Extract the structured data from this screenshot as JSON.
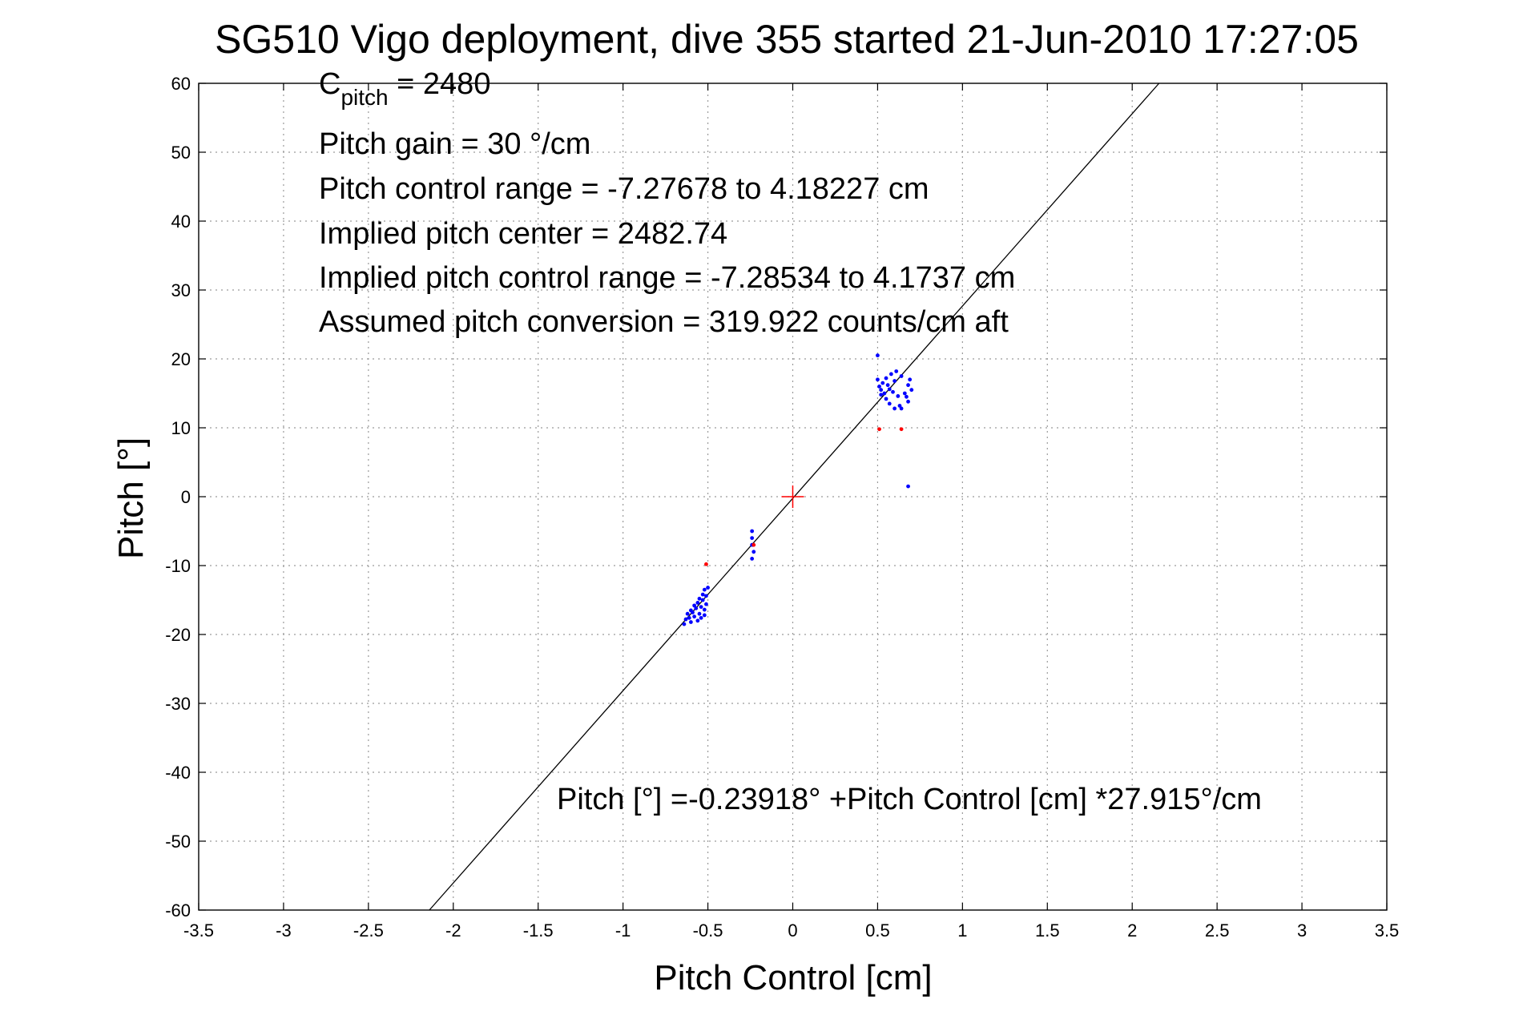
{
  "chart_data": {
    "type": "scatter",
    "title": "SG510 Vigo deployment, dive 355 started 21-Jun-2010 17:27:05",
    "xlabel": "Pitch Control [cm]",
    "ylabel": "Pitch [°]",
    "xlim": [
      -3.5,
      3.5
    ],
    "ylim": [
      -60,
      60
    ],
    "xticks": [
      -3.5,
      -3,
      -2.5,
      -2,
      -1.5,
      -1,
      -0.5,
      0,
      0.5,
      1,
      1.5,
      2,
      2.5,
      3,
      3.5
    ],
    "yticks": [
      -60,
      -50,
      -40,
      -30,
      -20,
      -10,
      0,
      10,
      20,
      30,
      40,
      50,
      60
    ],
    "grid": true,
    "annotations": {
      "c_pitch_main": "C",
      "c_pitch_sub": "pitch",
      "c_pitch_value": " = 2480",
      "line2": "Pitch gain = 30 °/cm",
      "line3": "Pitch control range = -7.27678 to 4.18227 cm",
      "line4": "Implied pitch center = 2482.74",
      "line5": "Implied pitch control range = -7.28534 to 4.1737 cm",
      "line6": "Assumed pitch conversion = 319.922 counts/cm aft",
      "fit_equation": "Pitch [°] =-0.23918° +Pitch Control [cm] *27.915°/cm"
    },
    "fit_line": {
      "intercept": -0.23918,
      "slope": 27.915,
      "color": "#000000"
    },
    "center_marker": {
      "x": 0,
      "y": 0,
      "color": "#ff0000"
    },
    "series": [
      {
        "color": "#0000ff",
        "points": [
          [
            0.5,
            20.5
          ],
          [
            0.5,
            17
          ],
          [
            0.51,
            16
          ],
          [
            0.52,
            15.5
          ],
          [
            0.52,
            14.8
          ],
          [
            0.53,
            16.5
          ],
          [
            0.54,
            15
          ],
          [
            0.55,
            17.2
          ],
          [
            0.55,
            14.2
          ],
          [
            0.56,
            16.2
          ],
          [
            0.57,
            15.6
          ],
          [
            0.57,
            13.5
          ],
          [
            0.58,
            17.8
          ],
          [
            0.59,
            15.2
          ],
          [
            0.6,
            12.8
          ],
          [
            0.6,
            16.8
          ],
          [
            0.61,
            18.2
          ],
          [
            0.62,
            14.6
          ],
          [
            0.63,
            13.2
          ],
          [
            0.64,
            17.5
          ],
          [
            0.64,
            12.8
          ],
          [
            0.66,
            15
          ],
          [
            0.67,
            14.5
          ],
          [
            0.68,
            16.2
          ],
          [
            0.68,
            13.8
          ],
          [
            0.69,
            17
          ],
          [
            0.7,
            15.5
          ],
          [
            0.68,
            1.5
          ],
          [
            -0.24,
            -5
          ],
          [
            -0.24,
            -6
          ],
          [
            -0.24,
            -7
          ],
          [
            -0.23,
            -8
          ],
          [
            -0.24,
            -9
          ],
          [
            -0.64,
            -18.5
          ],
          [
            -0.63,
            -17.8
          ],
          [
            -0.62,
            -17
          ],
          [
            -0.61,
            -17.6
          ],
          [
            -0.6,
            -16.5
          ],
          [
            -0.59,
            -16.8
          ],
          [
            -0.58,
            -17.4
          ],
          [
            -0.58,
            -15.8
          ],
          [
            -0.57,
            -16.2
          ],
          [
            -0.56,
            -18
          ],
          [
            -0.56,
            -15.4
          ],
          [
            -0.55,
            -17
          ],
          [
            -0.55,
            -14.8
          ],
          [
            -0.54,
            -16
          ],
          [
            -0.54,
            -17.6
          ],
          [
            -0.53,
            -15
          ],
          [
            -0.53,
            -14.2
          ],
          [
            -0.52,
            -16.4
          ],
          [
            -0.52,
            -13.5
          ],
          [
            -0.51,
            -15.6
          ],
          [
            -0.51,
            -14.4
          ],
          [
            -0.52,
            -17.2
          ],
          [
            -0.6,
            -18.2
          ],
          [
            -0.5,
            -13.2
          ]
        ]
      },
      {
        "color": "#ff0000",
        "points": [
          [
            0.51,
            9.8
          ],
          [
            0.64,
            9.8
          ],
          [
            -0.51,
            -9.8
          ],
          [
            -0.23,
            -7
          ]
        ]
      }
    ]
  }
}
